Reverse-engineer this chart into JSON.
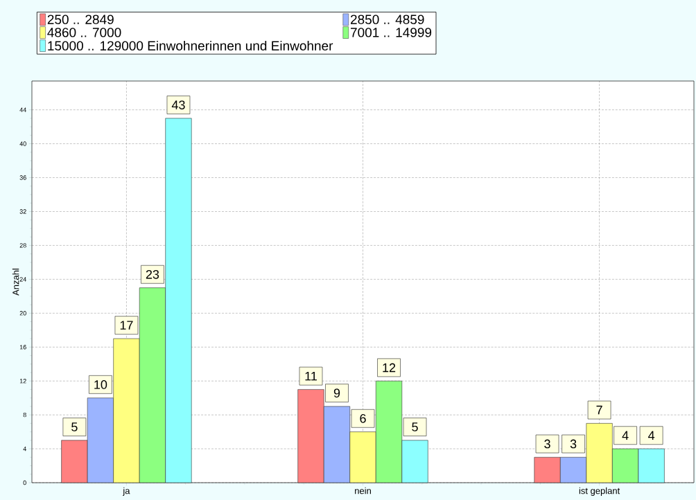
{
  "chart_data": {
    "type": "bar",
    "categories": [
      "ja",
      "nein",
      "ist geplant"
    ],
    "ylabel": "Anzahl",
    "series": [
      {
        "name": "250 .. 2849",
        "color": "#ff8080",
        "values": [
          5,
          11,
          3
        ]
      },
      {
        "name": "2850 .. 4859",
        "color": "#9bb4ff",
        "values": [
          10,
          9,
          3
        ]
      },
      {
        "name": "4860 .. 7000",
        "color": "#ffff80",
        "values": [
          17,
          6,
          7
        ]
      },
      {
        "name": "7001 .. 14999",
        "color": "#8cff80",
        "values": [
          23,
          12,
          4
        ]
      },
      {
        "name": "15000 .. 129000 Einwohnerinnen und Einwohner",
        "color": "#8cffff",
        "values": [
          43,
          5,
          4
        ]
      }
    ],
    "ylim": [
      0,
      47.4
    ],
    "yticks": [
      0,
      4,
      8,
      12,
      16,
      20,
      24,
      28,
      32,
      36,
      40,
      44
    ],
    "grid": true,
    "legend": "top",
    "data_labels": true
  }
}
